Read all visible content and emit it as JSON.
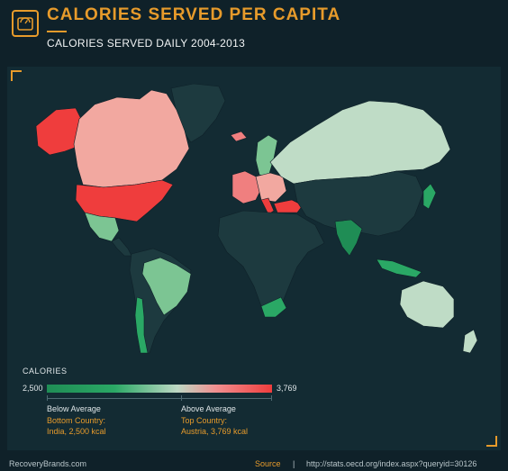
{
  "header": {
    "title": "CALORIES SERVED PER CAPITA",
    "subtitle": "CALORIES SERVED DAILY 2004-2013",
    "logo_icon": "scale-icon"
  },
  "legend": {
    "title": "CALORIES",
    "min": "2,500",
    "max": "3,769",
    "below_label": "Below Average",
    "above_label": "Above Average",
    "bottom_title": "Bottom Country:",
    "bottom_value": "India, 2,500 kcal",
    "top_title": "Top Country:",
    "top_value": "Austria, 3,769 kcal",
    "gradient_colors": [
      "#1f8d55",
      "#2aa865",
      "#bdd8c4",
      "#f09090",
      "#ef3d3d"
    ]
  },
  "footer": {
    "brand": "RecoveryBrands.com",
    "source_label": "Source",
    "separator": "|",
    "source_url": "http://stats.oecd.org/index.aspx?queryid=30126"
  },
  "colors": {
    "accent": "#e79b2b",
    "background": "#0f2129",
    "no_data": "#1d3a3f",
    "very_high": "#ef3d3d",
    "high": "#f07f7f",
    "above_avg": "#f2a8a0",
    "near_avg": "#bfdcc6",
    "below_avg": "#7cc593",
    "low": "#2aa865"
  }
}
